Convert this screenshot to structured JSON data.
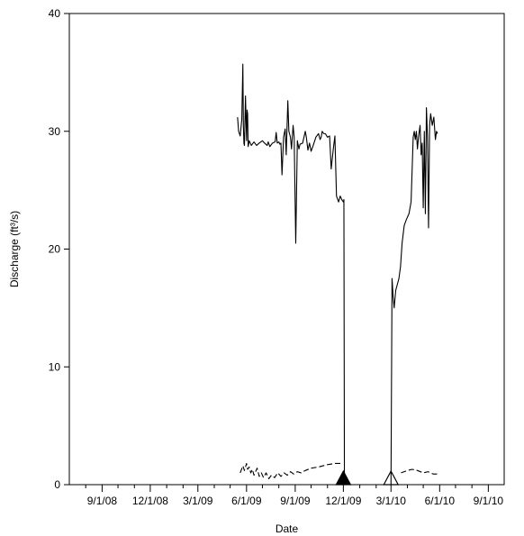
{
  "chart_data": {
    "type": "line",
    "xlabel": "Date",
    "ylabel": "Discharge (ft³/s)",
    "xlim": [
      "2008-07-01",
      "2010-10-01"
    ],
    "ylim": [
      0,
      40
    ],
    "x_major_ticks": [
      {
        "date": "2008-09-01",
        "label": "9/1/08"
      },
      {
        "date": "2008-12-01",
        "label": "12/1/08"
      },
      {
        "date": "2009-03-01",
        "label": "3/1/09"
      },
      {
        "date": "2009-06-01",
        "label": "6/1/09"
      },
      {
        "date": "2009-09-01",
        "label": "9/1/09"
      },
      {
        "date": "2009-12-01",
        "label": "12/1/09"
      },
      {
        "date": "2010-03-01",
        "label": "3/1/10"
      },
      {
        "date": "2010-06-01",
        "label": "6/1/10"
      },
      {
        "date": "2010-09-01",
        "label": "9/1/10"
      }
    ],
    "x_minor_ticks": [
      "2008-08-01",
      "2008-10-01",
      "2008-11-01",
      "2009-01-01",
      "2009-02-01",
      "2009-04-01",
      "2009-05-01",
      "2009-07-01",
      "2009-08-01",
      "2009-10-01",
      "2009-11-01",
      "2010-01-01",
      "2010-02-01",
      "2010-04-01",
      "2010-05-01",
      "2010-07-01",
      "2010-08-01"
    ],
    "y_ticks": [
      0,
      10,
      20,
      30,
      40
    ],
    "grid": false,
    "series": [
      {
        "style": "solid",
        "color": "#000000",
        "x": [
          "2009-05-15",
          "2009-05-17",
          "2009-05-20",
          "2009-05-23",
          "2009-05-25",
          "2009-05-26",
          "2009-05-27",
          "2009-05-28",
          "2009-05-30",
          "2009-06-01",
          "2009-06-02",
          "2009-06-03",
          "2009-06-04",
          "2009-06-06",
          "2009-06-10",
          "2009-06-15",
          "2009-06-20",
          "2009-06-25",
          "2009-07-01",
          "2009-07-05",
          "2009-07-10",
          "2009-07-12",
          "2009-07-15",
          "2009-07-20",
          "2009-07-25",
          "2009-07-27",
          "2009-07-29",
          "2009-08-01",
          "2009-08-03",
          "2009-08-05",
          "2009-08-07",
          "2009-08-10",
          "2009-08-13",
          "2009-08-15",
          "2009-08-18",
          "2009-08-20",
          "2009-08-23",
          "2009-08-25",
          "2009-08-28",
          "2009-08-30",
          "2009-09-02",
          "2009-09-05",
          "2009-09-08",
          "2009-09-10",
          "2009-09-15",
          "2009-09-20",
          "2009-09-22",
          "2009-09-25",
          "2009-09-28",
          "2009-10-01",
          "2009-10-05",
          "2009-10-10",
          "2009-10-15",
          "2009-10-18",
          "2009-10-20",
          "2009-10-22",
          "2009-10-25",
          "2009-10-28",
          "2009-11-01",
          "2009-11-05",
          "2009-11-08",
          "2009-11-12",
          "2009-11-15",
          "2009-11-18",
          "2009-11-22",
          "2009-11-25",
          "2009-11-28",
          "2009-12-01",
          "2009-12-02",
          "2009-12-03"
        ],
        "y": [
          31.2,
          30.0,
          29.6,
          31.0,
          35.7,
          30.5,
          29.0,
          28.8,
          33.0,
          29.2,
          31.8,
          31.5,
          28.7,
          29.2,
          28.8,
          29.1,
          28.8,
          29.0,
          29.2,
          29.0,
          28.8,
          29.1,
          28.7,
          29.0,
          29.1,
          29.9,
          29.0,
          29.1,
          28.9,
          29.0,
          26.3,
          29.5,
          30.2,
          28.0,
          32.6,
          30.0,
          29.5,
          28.5,
          30.5,
          29.5,
          20.5,
          29.2,
          28.5,
          28.9,
          29.0,
          30.0,
          29.5,
          28.4,
          29.0,
          28.3,
          28.8,
          29.5,
          29.8,
          29.3,
          29.5,
          30.0,
          29.8,
          29.8,
          29.5,
          29.6,
          26.8,
          28.5,
          29.6,
          24.5,
          24.0,
          24.5,
          24.2,
          24.0,
          24.2,
          0.0
        ]
      },
      {
        "style": "solid",
        "color": "#000000",
        "x": [
          "2010-03-01",
          "2010-03-03",
          "2010-03-05",
          "2010-03-07",
          "2010-03-10",
          "2010-03-13",
          "2010-03-16",
          "2010-03-19",
          "2010-03-22",
          "2010-03-26",
          "2010-03-30",
          "2010-04-04",
          "2010-04-08",
          "2010-04-12",
          "2010-04-14",
          "2010-04-16",
          "2010-04-18",
          "2010-04-20",
          "2010-04-22",
          "2010-04-25",
          "2010-04-27",
          "2010-04-29",
          "2010-05-01",
          "2010-05-03",
          "2010-05-05",
          "2010-05-07",
          "2010-05-09",
          "2010-05-11",
          "2010-05-13",
          "2010-05-15",
          "2010-05-18",
          "2010-05-21",
          "2010-05-24",
          "2010-05-26",
          "2010-05-28"
        ],
        "y": [
          0.0,
          17.5,
          16.0,
          15.0,
          16.5,
          17.0,
          17.5,
          18.5,
          20.5,
          22.0,
          22.5,
          23.0,
          24.0,
          29.5,
          30.0,
          29.3,
          30.0,
          28.5,
          29.5,
          30.5,
          28.0,
          29.0,
          23.5,
          30.0,
          23.0,
          32.0,
          29.5,
          21.8,
          30.5,
          31.5,
          30.5,
          31.2,
          29.3,
          30.0,
          29.8
        ]
      },
      {
        "style": "dashed",
        "color": "#000000",
        "x": [
          "2009-05-20",
          "2009-05-25",
          "2009-05-28",
          "2009-06-01",
          "2009-06-03",
          "2009-06-06",
          "2009-06-09",
          "2009-06-12",
          "2009-06-15",
          "2009-06-18",
          "2009-06-21",
          "2009-06-25",
          "2009-06-29",
          "2009-07-03",
          "2009-07-08",
          "2009-07-13",
          "2009-07-18",
          "2009-07-24",
          "2009-07-30",
          "2009-08-05",
          "2009-08-11",
          "2009-08-17",
          "2009-08-23",
          "2009-08-29",
          "2009-09-05",
          "2009-09-12",
          "2009-09-20",
          "2009-10-01",
          "2009-10-15",
          "2009-11-01",
          "2009-11-15",
          "2009-11-30"
        ],
        "y": [
          1.0,
          1.6,
          1.2,
          1.8,
          1.3,
          1.5,
          1.0,
          1.3,
          0.8,
          1.1,
          1.4,
          0.7,
          1.0,
          0.6,
          1.0,
          0.5,
          0.8,
          0.6,
          1.0,
          0.7,
          1.0,
          0.8,
          1.1,
          0.9,
          1.1,
          1.0,
          1.2,
          1.4,
          1.5,
          1.7,
          1.8,
          1.8
        ]
      },
      {
        "style": "dashed",
        "color": "#000000",
        "x": [
          "2010-03-20",
          "2010-04-01",
          "2010-04-10",
          "2010-04-20",
          "2010-05-01",
          "2010-05-10",
          "2010-05-20",
          "2010-05-30"
        ],
        "y": [
          1.0,
          1.2,
          1.3,
          1.2,
          1.0,
          1.1,
          0.9,
          0.9
        ]
      }
    ],
    "annotations": [
      {
        "type": "triangle-filled",
        "x": "2009-12-01",
        "y": 0,
        "color": "#000000"
      },
      {
        "type": "triangle-open",
        "x": "2010-03-01",
        "y": 0,
        "color": "#000000"
      }
    ]
  }
}
